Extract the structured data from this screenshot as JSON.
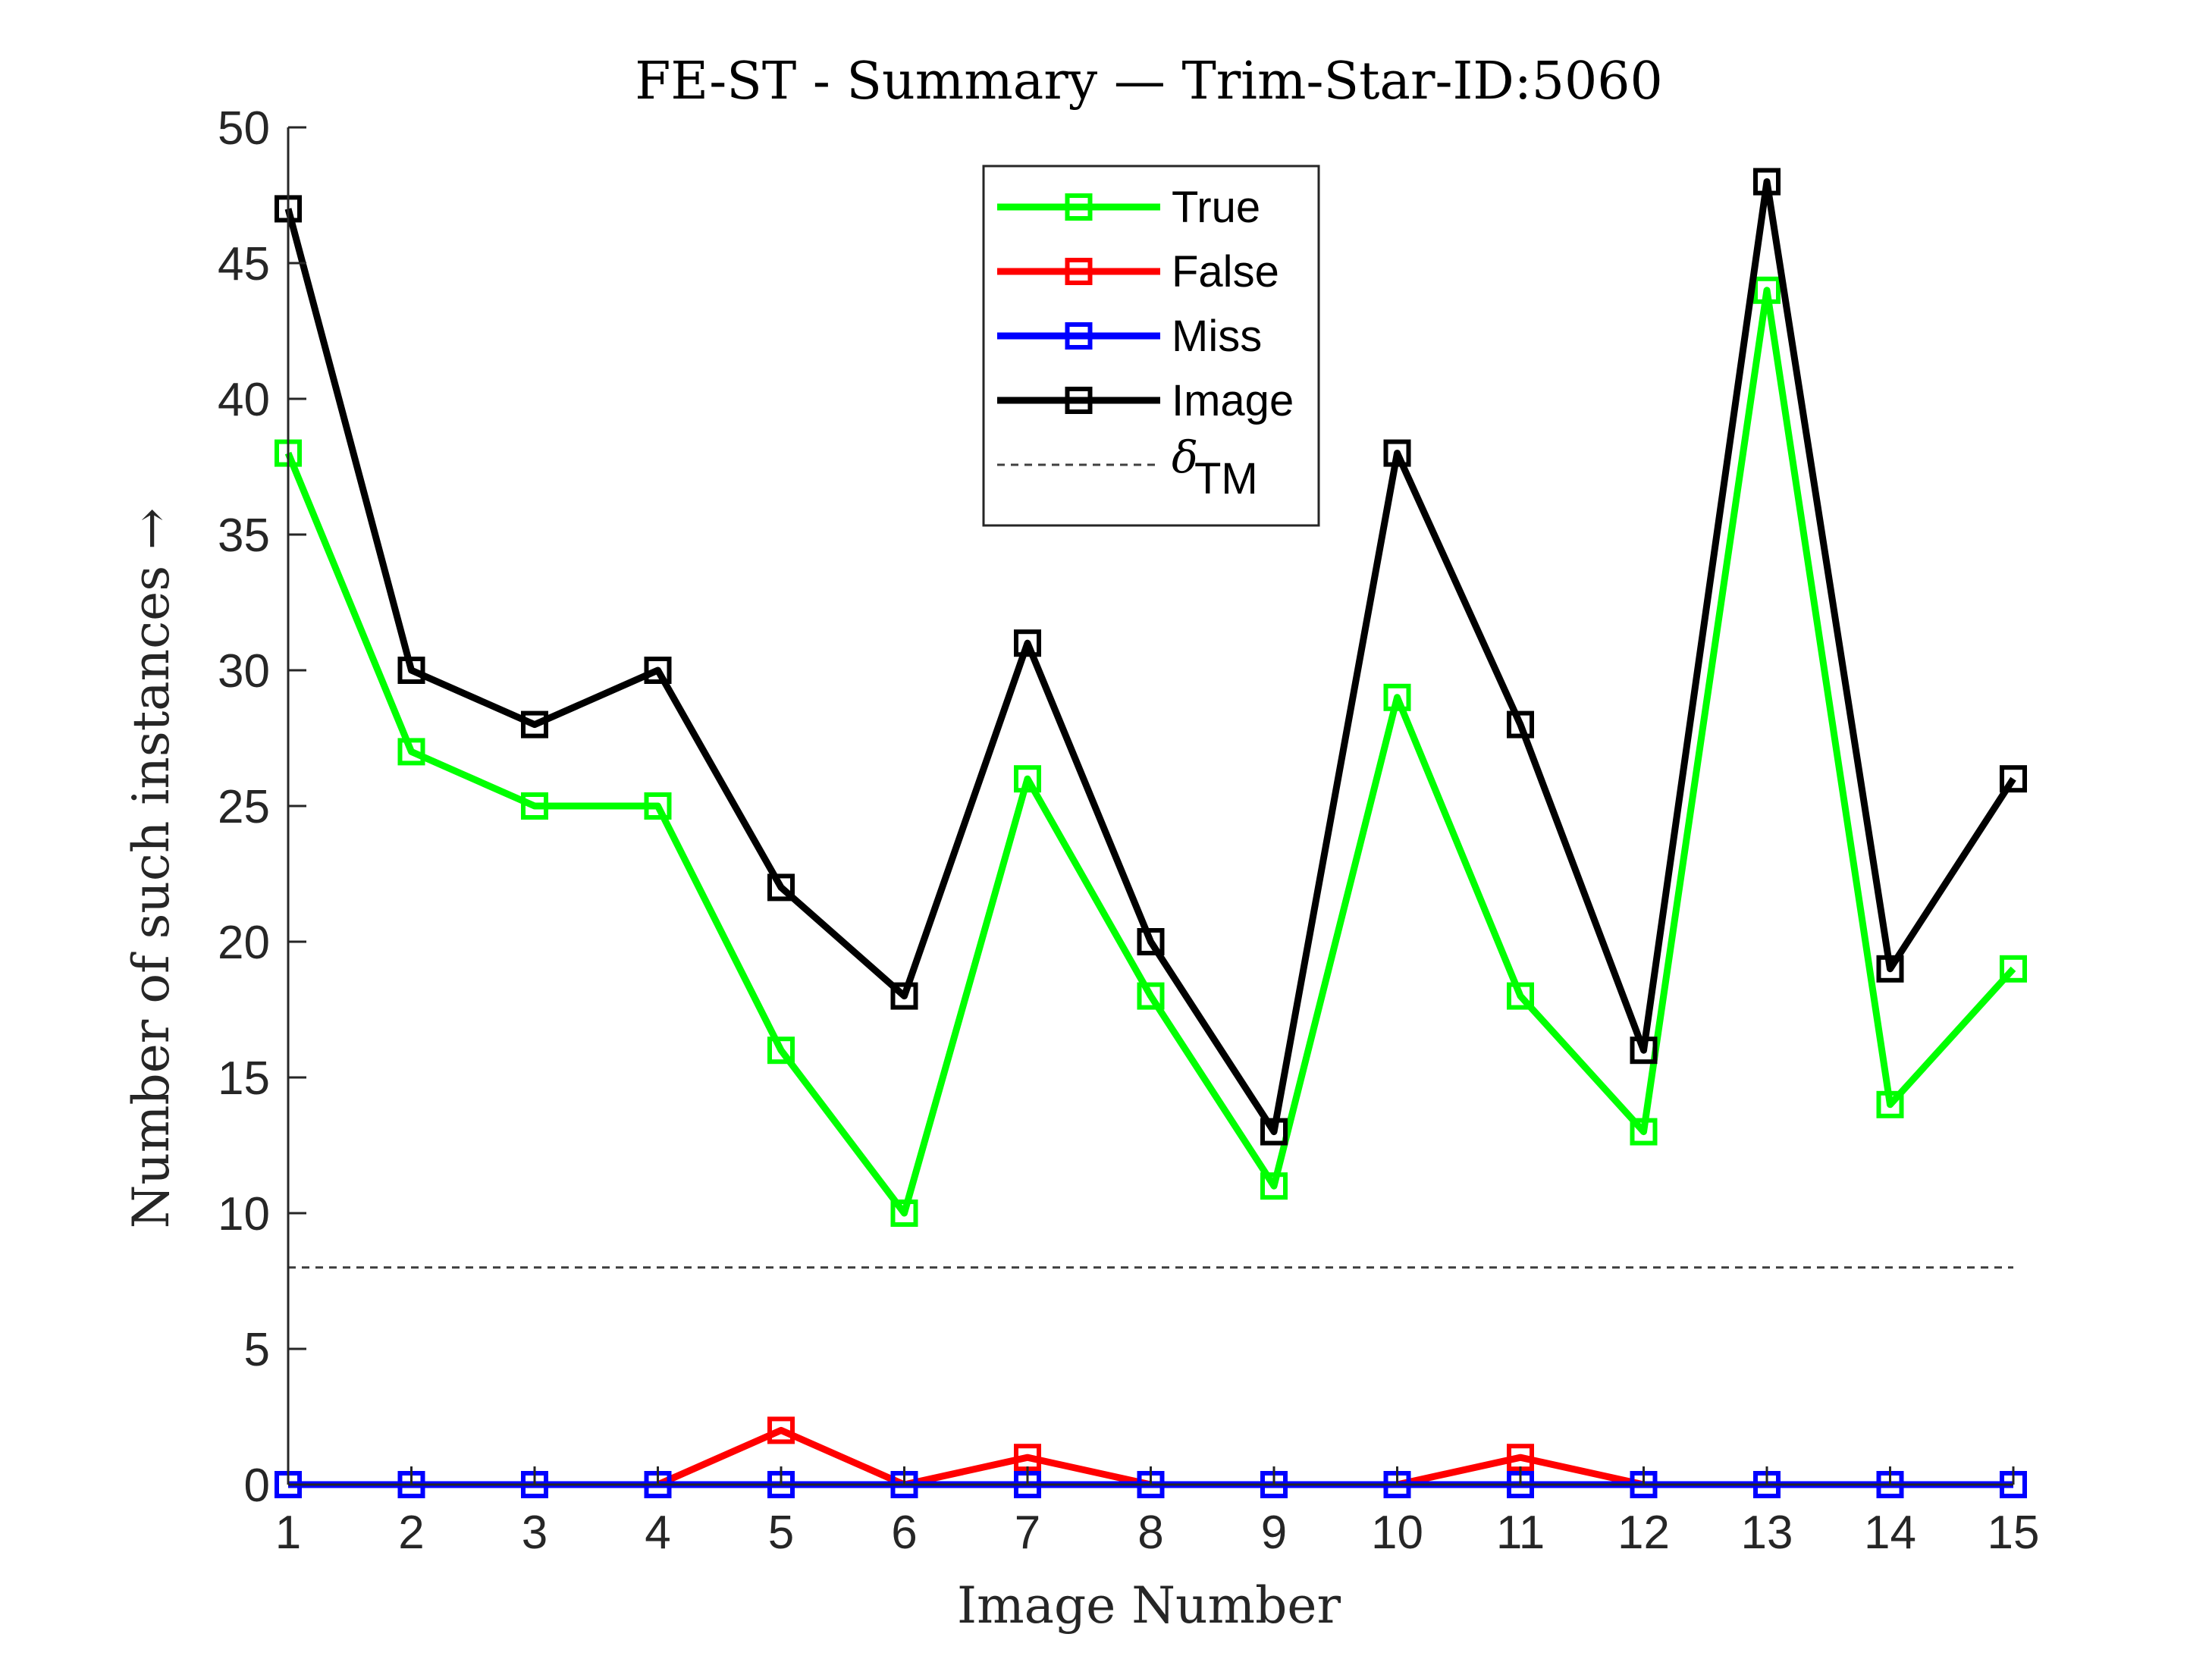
{
  "chart_data": {
    "type": "line",
    "title": "FE-ST - Summary — Trim-Star-ID:5060",
    "xlabel": "Image Number",
    "ylabel": "Number of such instances →",
    "x": [
      1,
      2,
      3,
      4,
      5,
      6,
      7,
      8,
      9,
      10,
      11,
      12,
      13,
      14,
      15
    ],
    "xlim": [
      1,
      15
    ],
    "ylim": [
      0,
      50
    ],
    "yticks": [
      0,
      5,
      10,
      15,
      20,
      25,
      30,
      35,
      40,
      45,
      50
    ],
    "grid": false,
    "legend_position": "top-center",
    "series": [
      {
        "name": "True",
        "color": "#00ff00",
        "marker": "square",
        "values": [
          38,
          27,
          25,
          25,
          16,
          10,
          26,
          18,
          11,
          29,
          18,
          13,
          44,
          14,
          19
        ]
      },
      {
        "name": "False",
        "color": "#ff0000",
        "marker": "square",
        "values": [
          0,
          0,
          0,
          0,
          2,
          0,
          1,
          0,
          0,
          0,
          1,
          0,
          0,
          0,
          0
        ]
      },
      {
        "name": "Miss",
        "color": "#0000ff",
        "marker": "square",
        "values": [
          0,
          0,
          0,
          0,
          0,
          0,
          0,
          0,
          0,
          0,
          0,
          0,
          0,
          0,
          0
        ]
      },
      {
        "name": "Image",
        "color": "#000000",
        "marker": "square",
        "values": [
          47,
          30,
          28,
          30,
          22,
          18,
          31,
          20,
          13,
          38,
          28,
          16,
          48,
          19,
          26
        ]
      }
    ],
    "threshold": {
      "name": "δ",
      "name_subscript": "TM",
      "value": 8,
      "color": "#404040",
      "style": "dashed"
    }
  }
}
